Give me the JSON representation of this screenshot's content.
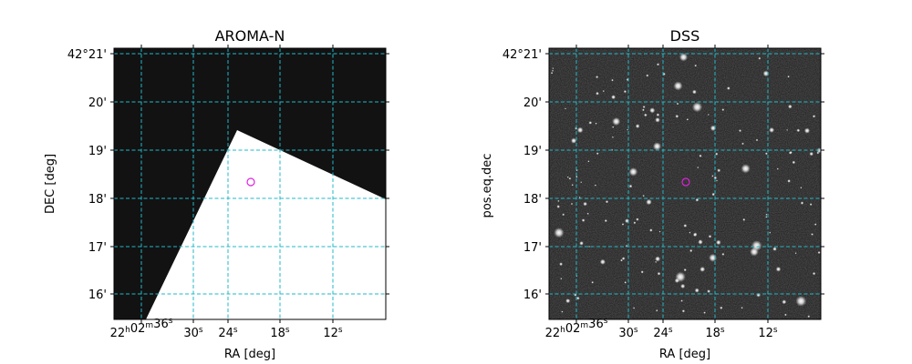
{
  "panels": [
    {
      "title": "AROMA-N",
      "xlabel": "RA [deg]",
      "ylabel": "DEC [deg]",
      "image": "coverage-mask",
      "dec_ticks": [
        "42°21'",
        "20'",
        "19'",
        "18'",
        "17'",
        "16'"
      ],
      "ra_ticks": [
        {
          "h": "22",
          "m": "02",
          "s": "36"
        },
        {
          "s": "30"
        },
        {
          "s": "24"
        },
        {
          "s": "18"
        },
        {
          "s": "12"
        }
      ]
    },
    {
      "title": "DSS",
      "xlabel": "RA [deg]",
      "ylabel": "pos.eq.dec",
      "image": "dss-star-field",
      "dec_ticks": [
        "42°21'",
        "20'",
        "19'",
        "18'",
        "17'",
        "16'"
      ],
      "ra_ticks": [
        {
          "h": "22",
          "m": "02",
          "s": "36"
        },
        {
          "s": "30"
        },
        {
          "s": "24"
        },
        {
          "s": "18"
        },
        {
          "s": "12"
        }
      ]
    }
  ],
  "colors": {
    "grid": "#22b8c8",
    "marker": "#dd22dd",
    "mask_dark": "#121212",
    "mask_light": "#ffffff",
    "sky": "#1a1a1a"
  },
  "marker_shape": "open-circle"
}
